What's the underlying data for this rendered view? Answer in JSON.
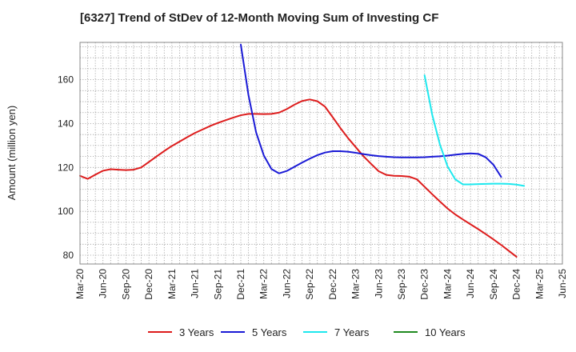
{
  "chart_data": {
    "type": "line",
    "title": "[6327]  Trend of StDev of 12-Month Moving Sum of Investing CF",
    "ylabel": "Amount (million yen)",
    "xlabel": "",
    "ylim": [
      76,
      177
    ],
    "yticks": [
      80,
      100,
      120,
      140,
      160
    ],
    "grid": true,
    "legend_position": "bottom",
    "x_tick_labels": [
      "Mar-20",
      "Jun-20",
      "Sep-20",
      "Dec-20",
      "Mar-21",
      "Jun-21",
      "Sep-21",
      "Dec-21",
      "Mar-22",
      "Jun-22",
      "Sep-22",
      "Dec-22",
      "Mar-23",
      "Jun-23",
      "Sep-23",
      "Dec-23",
      "Mar-24",
      "Jun-24",
      "Sep-24",
      "Dec-24",
      "Mar-25",
      "Jun-25"
    ],
    "series": [
      {
        "name": "3 Years",
        "color": "#dd1c1c",
        "start_index": 0,
        "values": [
          116.2,
          114.8,
          116.7,
          118.5,
          119.2,
          119.0,
          118.8,
          119.0,
          120.0,
          122.5,
          125.0,
          127.5,
          129.8,
          131.8,
          133.8,
          135.7,
          137.3,
          138.9,
          140.3,
          141.5,
          142.7,
          143.8,
          144.4,
          144.4,
          144.3,
          144.4,
          145.0,
          146.6,
          148.6,
          150.3,
          151.0,
          150.2,
          147.7,
          142.9,
          138.0,
          133.4,
          129.3,
          125.2,
          121.7,
          118.3,
          116.6,
          116.2,
          116.1,
          115.8,
          114.6,
          111.2,
          107.8,
          104.5,
          101.3,
          98.6,
          96.3,
          94.1,
          91.9,
          89.6,
          87.2,
          84.7,
          82.0,
          79.3
        ]
      },
      {
        "name": "5 Years",
        "color": "#1a1ad6",
        "start_index": 21,
        "values": [
          176,
          153,
          136,
          125.5,
          119.3,
          117.3,
          118.4,
          120.3,
          122.2,
          124.0,
          125.6,
          126.8,
          127.4,
          127.4,
          127.2,
          126.7,
          126.1,
          125.6,
          125.2,
          124.9,
          124.7,
          124.6,
          124.6,
          124.6,
          124.7,
          124.9,
          125.1,
          125.4,
          125.8,
          126.2,
          126.4,
          126.2,
          124.6,
          121.2,
          115.7
        ]
      },
      {
        "name": "7 Years",
        "color": "#1ee8ee",
        "start_index": 45,
        "values": [
          162,
          144,
          130.5,
          120.5,
          114.6,
          112.3,
          112.3,
          112.4,
          112.5,
          112.6,
          112.6,
          112.5,
          112.2,
          111.6
        ]
      },
      {
        "name": "10 Years",
        "color": "#1f8a1f",
        "start_index": 0,
        "values": []
      }
    ]
  }
}
